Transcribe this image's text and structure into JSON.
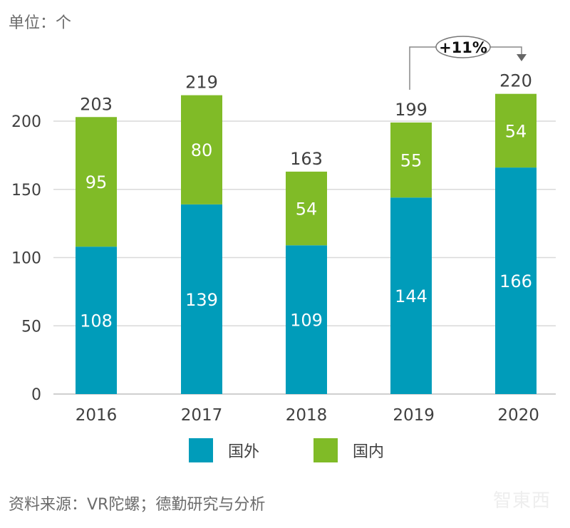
{
  "unit_label": "单位：个",
  "source": "资料来源：VR陀螺；德勤研究与分析",
  "watermark": "智東西",
  "colors": {
    "foreign": "#009cba",
    "domestic": "#80bb27",
    "grid": "#d9d9d9"
  },
  "chart_data": {
    "type": "bar",
    "stacked": true,
    "categories": [
      "2016",
      "2017",
      "2018",
      "2019",
      "2020"
    ],
    "series": [
      {
        "name": "国外",
        "values": [
          108,
          139,
          109,
          144,
          166
        ]
      },
      {
        "name": "国内",
        "values": [
          95,
          80,
          54,
          55,
          54
        ]
      }
    ],
    "totals": [
      203,
      219,
      163,
      199,
      220
    ],
    "ylim": [
      0,
      200
    ],
    "yticks": [
      0,
      50,
      100,
      150,
      200
    ],
    "grid": true,
    "legend": "bottom",
    "annotation": {
      "text": "+11%",
      "from": "2019",
      "to": "2020"
    }
  }
}
